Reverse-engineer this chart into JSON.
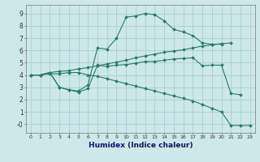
{
  "xlabel": "Humidex (Indice chaleur)",
  "bg_color": "#cce8e8",
  "grid_color": "#aad0d0",
  "line_color": "#2a7a6a",
  "xlim": [
    -0.5,
    23.5
  ],
  "ylim": [
    -0.7,
    9.7
  ],
  "xticks": [
    0,
    1,
    2,
    3,
    4,
    5,
    6,
    7,
    8,
    9,
    10,
    11,
    12,
    13,
    14,
    15,
    16,
    17,
    18,
    19,
    20,
    21,
    22,
    23
  ],
  "yticks": [
    0,
    1,
    2,
    3,
    4,
    5,
    6,
    7,
    8,
    9
  ],
  "ytick_labels": [
    "-0",
    "1",
    "2",
    "3",
    "4",
    "5",
    "6",
    "7",
    "8",
    "9"
  ],
  "series": [
    {
      "x": [
        0,
        1,
        2,
        3,
        4,
        5,
        6,
        7,
        8,
        9,
        10,
        11,
        12,
        13,
        14,
        15,
        16,
        17,
        18,
        19,
        20,
        21
      ],
      "y": [
        4.0,
        4.0,
        4.2,
        4.3,
        4.35,
        4.5,
        4.6,
        4.75,
        4.9,
        5.05,
        5.2,
        5.4,
        5.55,
        5.7,
        5.85,
        5.95,
        6.05,
        6.2,
        6.35,
        6.45,
        6.55,
        6.6
      ]
    },
    {
      "x": [
        0,
        1,
        2,
        3,
        4,
        5,
        6,
        7,
        8,
        9,
        10,
        11,
        12,
        13,
        14,
        15,
        16,
        17,
        18,
        19,
        20
      ],
      "y": [
        4.0,
        4.0,
        4.2,
        3.0,
        2.8,
        2.7,
        3.2,
        6.2,
        6.1,
        7.0,
        8.7,
        8.8,
        9.0,
        8.9,
        8.4,
        7.7,
        7.5,
        7.2,
        6.6,
        6.5,
        6.5
      ]
    },
    {
      "x": [
        0,
        1,
        2,
        3,
        4,
        5,
        6,
        7,
        8,
        9,
        10,
        11,
        12,
        13,
        14,
        15,
        16,
        17,
        18,
        19,
        20,
        21,
        22
      ],
      "y": [
        4.0,
        4.0,
        4.2,
        3.0,
        2.8,
        2.6,
        2.9,
        4.8,
        4.7,
        4.8,
        4.85,
        4.95,
        5.1,
        5.1,
        5.2,
        5.3,
        5.35,
        5.4,
        4.75,
        4.8,
        4.8,
        2.5,
        2.4
      ]
    },
    {
      "x": [
        0,
        1,
        2,
        3,
        4,
        5,
        6,
        7,
        8,
        9,
        10,
        11,
        12,
        13,
        14,
        15,
        16,
        17,
        18,
        19,
        20,
        21,
        22,
        23
      ],
      "y": [
        4.0,
        4.0,
        4.1,
        4.1,
        4.2,
        4.2,
        4.0,
        3.9,
        3.7,
        3.5,
        3.3,
        3.1,
        2.9,
        2.7,
        2.5,
        2.3,
        2.1,
        1.9,
        1.6,
        1.3,
        1.0,
        -0.1,
        -0.1,
        -0.1
      ]
    }
  ]
}
